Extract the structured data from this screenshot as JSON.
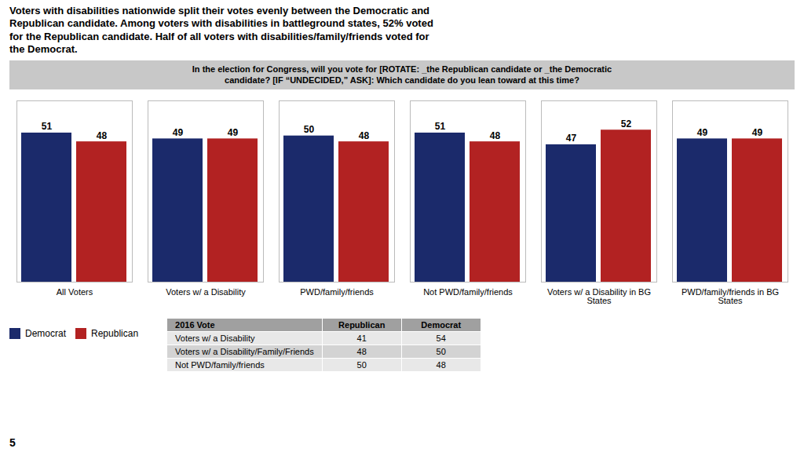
{
  "chart_data": {
    "type": "bar",
    "title": "Voters with disabilities nationwide split their votes evenly between the Democratic and\nRepublican candidate. Among voters with disabilities in battleground states, 52% voted\nfor the Republican candidate. Half of all voters with disabilities/family/friends voted for\nthe Democrat.",
    "subtitle": "In the election for Congress, will you vote for [ROTATE: _the Republican candidate or _the Democratic\ncandidate? [IF “UNDECIDED,” ASK]: Which candidate do you lean toward at this time?",
    "categories": [
      "All Voters",
      "Voters w/ a Disability",
      "PWD/family/friends",
      "Not PWD/family/friends",
      "Voters w/ a Disability in BG\nStates",
      "PWD/family/friends in BG\nStates"
    ],
    "series": [
      {
        "name": "Democrat",
        "color": "#1B2A6B",
        "values": [
          51,
          49,
          50,
          51,
          47,
          49
        ]
      },
      {
        "name": "Republican",
        "color": "#B22222",
        "values": [
          48,
          49,
          48,
          48,
          52,
          49
        ]
      }
    ],
    "ylim": [
      0,
      62
    ],
    "yticks": [],
    "grid": false,
    "legend": "lower left",
    "data_labels": true,
    "tick_labels": "x",
    "table": {
      "headers": [
        "2016 Vote",
        "Republican",
        "Democrat"
      ],
      "rows": [
        [
          "Voters w/ a Disability",
          "41",
          "54"
        ],
        [
          "Voters w/ a Disability/Family/Friends",
          "48",
          "50"
        ],
        [
          "Not PWD/family/friends",
          "50",
          "48"
        ]
      ]
    },
    "page_number": "5"
  }
}
